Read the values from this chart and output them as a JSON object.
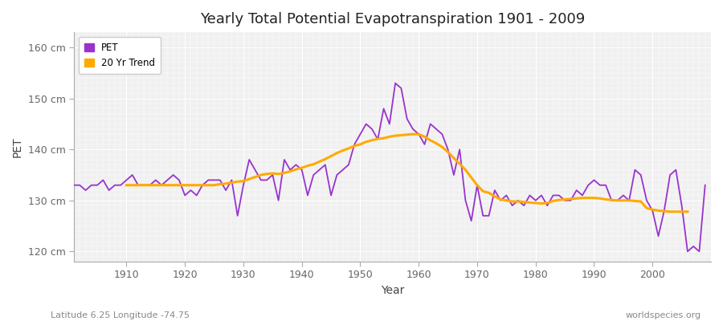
{
  "title": "Yearly Total Potential Evapotranspiration 1901 - 2009",
  "xlabel": "Year",
  "ylabel": "PET",
  "subtitle_left": "Latitude 6.25 Longitude -74.75",
  "subtitle_right": "worldspecies.org",
  "pet_color": "#9933cc",
  "trend_color": "#ffaa00",
  "background_color": "#ffffff",
  "plot_bg_color": "#f0f0f0",
  "ylim": [
    118,
    163
  ],
  "yticks": [
    120,
    130,
    140,
    150,
    160
  ],
  "ytick_labels": [
    "120 cm",
    "130 cm",
    "140 cm",
    "150 cm",
    "160 cm"
  ],
  "xlim": [
    1901,
    2010
  ],
  "xticks": [
    1910,
    1920,
    1930,
    1940,
    1950,
    1960,
    1970,
    1980,
    1990,
    2000
  ],
  "years": [
    1901,
    1902,
    1903,
    1904,
    1905,
    1906,
    1907,
    1908,
    1909,
    1910,
    1911,
    1912,
    1913,
    1914,
    1915,
    1916,
    1917,
    1918,
    1919,
    1920,
    1921,
    1922,
    1923,
    1924,
    1925,
    1926,
    1927,
    1928,
    1929,
    1930,
    1931,
    1932,
    1933,
    1934,
    1935,
    1936,
    1937,
    1938,
    1939,
    1940,
    1941,
    1942,
    1943,
    1944,
    1945,
    1946,
    1947,
    1948,
    1949,
    1950,
    1951,
    1952,
    1953,
    1954,
    1955,
    1956,
    1957,
    1958,
    1959,
    1960,
    1961,
    1962,
    1963,
    1964,
    1965,
    1966,
    1967,
    1968,
    1969,
    1970,
    1971,
    1972,
    1973,
    1974,
    1975,
    1976,
    1977,
    1978,
    1979,
    1980,
    1981,
    1982,
    1983,
    1984,
    1985,
    1986,
    1987,
    1988,
    1989,
    1990,
    1991,
    1992,
    1993,
    1994,
    1995,
    1996,
    1997,
    1998,
    1999,
    2000,
    2001,
    2002,
    2003,
    2004,
    2005,
    2006,
    2007,
    2008,
    2009
  ],
  "pet_values": [
    133,
    133,
    132,
    133,
    133,
    134,
    132,
    133,
    133,
    134,
    135,
    133,
    133,
    133,
    134,
    133,
    134,
    135,
    134,
    131,
    132,
    131,
    133,
    134,
    134,
    134,
    132,
    134,
    127,
    133,
    138,
    136,
    134,
    134,
    135,
    130,
    138,
    136,
    137,
    136,
    131,
    135,
    136,
    137,
    131,
    135,
    136,
    137,
    141,
    143,
    145,
    144,
    142,
    148,
    145,
    153,
    152,
    146,
    144,
    143,
    141,
    145,
    144,
    143,
    140,
    135,
    140,
    130,
    126,
    133,
    127,
    127,
    132,
    130,
    131,
    129,
    130,
    129,
    131,
    130,
    131,
    129,
    131,
    131,
    130,
    130,
    132,
    131,
    133,
    134,
    133,
    133,
    130,
    130,
    131,
    130,
    136,
    135,
    130,
    128,
    123,
    128,
    135,
    136,
    129,
    120,
    121,
    120,
    133
  ],
  "trend_values": [
    null,
    null,
    null,
    null,
    null,
    null,
    null,
    null,
    null,
    133.0,
    133.0,
    133.0,
    133.0,
    133.0,
    133.0,
    133.0,
    133.0,
    133.0,
    133.0,
    133.0,
    133.0,
    133.0,
    133.0,
    133.0,
    133.0,
    133.2,
    133.3,
    133.5,
    133.7,
    133.8,
    134.2,
    134.6,
    135.0,
    135.2,
    135.3,
    135.2,
    135.4,
    135.7,
    136.1,
    136.4,
    136.8,
    137.1,
    137.6,
    138.1,
    138.7,
    139.3,
    139.8,
    140.2,
    140.7,
    141.0,
    141.5,
    141.8,
    142.1,
    142.2,
    142.5,
    142.7,
    142.8,
    142.9,
    143.0,
    143.0,
    142.5,
    141.8,
    141.2,
    140.5,
    139.5,
    138.3,
    137.2,
    136.0,
    134.5,
    133.0,
    131.8,
    131.5,
    130.8,
    130.2,
    130.0,
    129.8,
    129.8,
    129.7,
    129.6,
    129.5,
    129.4,
    129.5,
    129.9,
    130.1,
    130.2,
    130.3,
    130.4,
    130.5,
    130.5,
    130.5,
    130.4,
    130.2,
    130.1,
    130.0,
    130.0,
    130.0,
    129.9,
    129.8,
    128.5,
    128.2,
    128.0,
    127.9,
    127.8,
    127.8,
    127.8,
    127.8,
    null,
    null
  ]
}
